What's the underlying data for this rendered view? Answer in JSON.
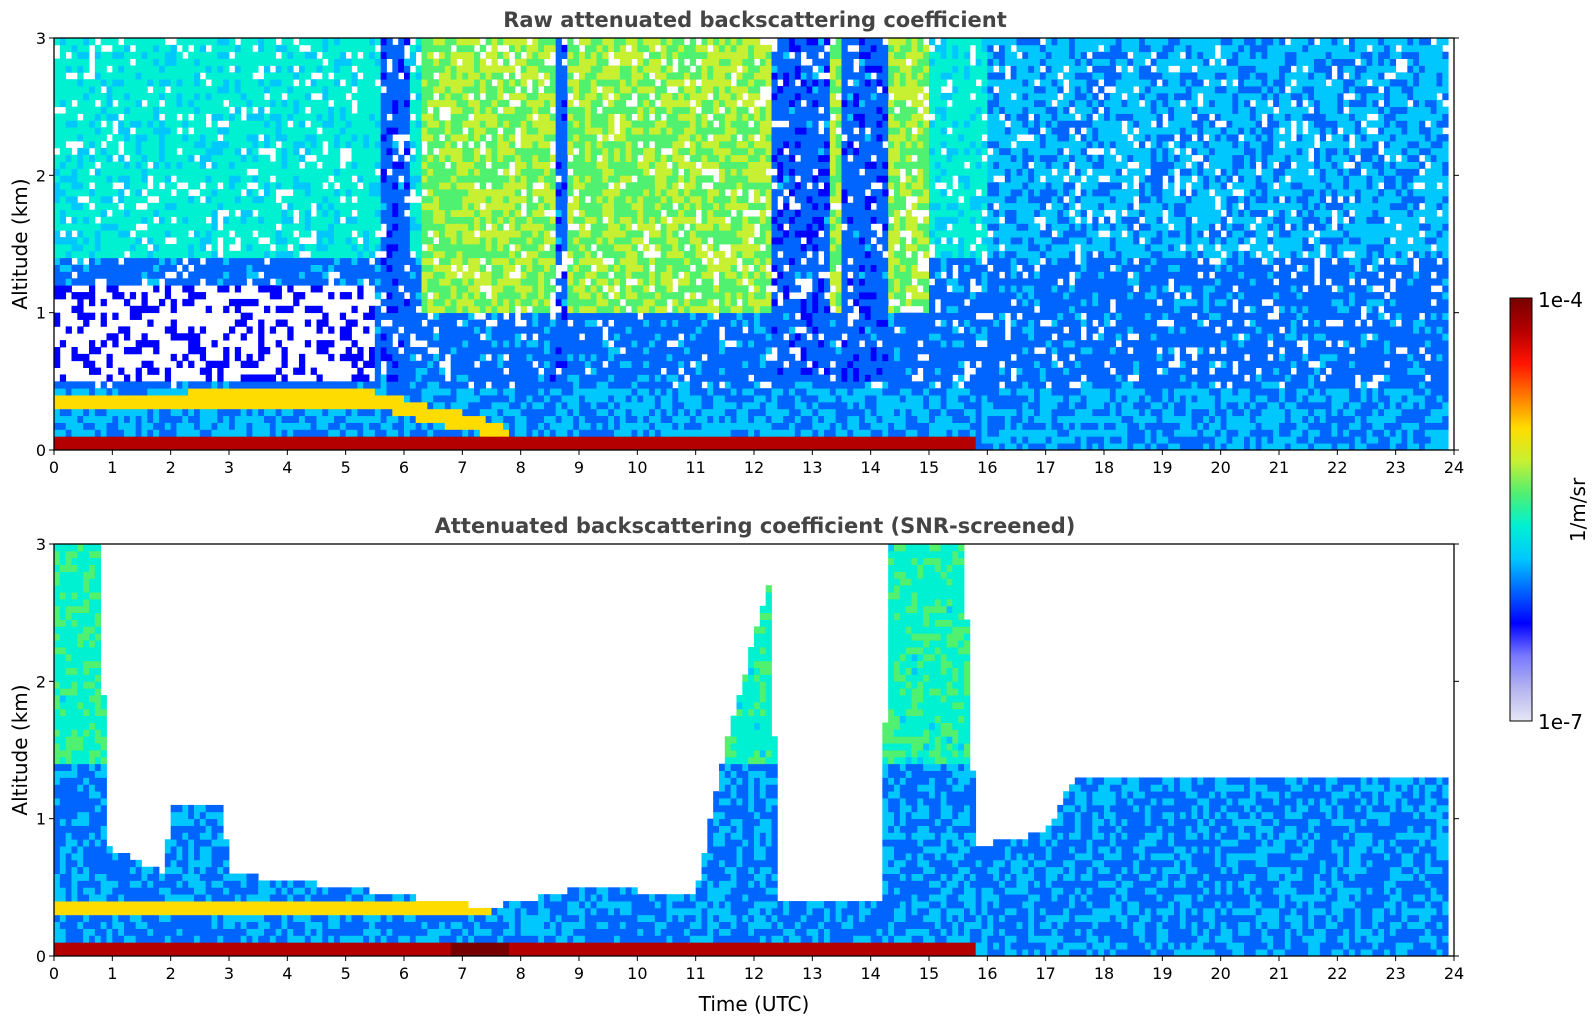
{
  "chart_data": [
    {
      "type": "heatmap",
      "title": "Raw attenuated backscattering coefficient",
      "xlabel": "",
      "ylabel": "Altitude (km)",
      "xlim": [
        0,
        24
      ],
      "ylim": [
        0,
        3
      ],
      "x_ticks": [
        "0",
        "1",
        "2",
        "3",
        "4",
        "5",
        "6",
        "7",
        "8",
        "9",
        "10",
        "11",
        "12",
        "13",
        "14",
        "15",
        "16",
        "17",
        "18",
        "19",
        "20",
        "21",
        "22",
        "23",
        "24"
      ],
      "y_ticks": [
        "0",
        "1",
        "2",
        "3"
      ],
      "grid": false,
      "features": {
        "surface_layer_top_km": 0.1,
        "surface_layer_end_utc": 15.8,
        "aerosol_layer": [
          [
            0,
            0.35
          ],
          [
            3,
            0.37
          ],
          [
            5.5,
            0.37
          ],
          [
            6.5,
            0.25
          ],
          [
            7.2,
            0.2
          ],
          [
            7.8,
            0.1
          ]
        ],
        "high_signal_bands_utc": [
          [
            6.3,
            8.6
          ],
          [
            8.8,
            12.3
          ],
          [
            13.35,
            13.5
          ],
          [
            14.3,
            15.0
          ]
        ],
        "low_signal_columns_utc": [
          [
            5.6,
            6.1
          ],
          [
            8.55,
            8.75
          ],
          [
            12.35,
            13.3
          ],
          [
            13.55,
            14.25
          ]
        ]
      }
    },
    {
      "type": "heatmap",
      "title": "Attenuated backscattering coefficient (SNR-screened)",
      "xlabel": "Time (UTC)",
      "ylabel": "Altitude (km)",
      "xlim": [
        0,
        24
      ],
      "ylim": [
        0,
        3
      ],
      "x_ticks": [
        "0",
        "1",
        "2",
        "3",
        "4",
        "5",
        "6",
        "7",
        "8",
        "9",
        "10",
        "11",
        "12",
        "13",
        "14",
        "15",
        "16",
        "17",
        "18",
        "19",
        "20",
        "21",
        "22",
        "23",
        "24"
      ],
      "y_ticks": [
        "0",
        "1",
        "2",
        "3"
      ],
      "grid": false,
      "features": {
        "valid_top_km_profile": [
          [
            0,
            3.0
          ],
          [
            0.8,
            3.0
          ],
          [
            0.9,
            0.8
          ],
          [
            1.9,
            0.6
          ],
          [
            2.0,
            1.1
          ],
          [
            2.9,
            1.1
          ],
          [
            3.0,
            0.6
          ],
          [
            5.0,
            0.5
          ],
          [
            7.5,
            0.35
          ],
          [
            9.0,
            0.5
          ],
          [
            11.0,
            0.45
          ],
          [
            11.5,
            1.5
          ],
          [
            12.3,
            2.8
          ],
          [
            12.4,
            0.4
          ],
          [
            14.2,
            0.4
          ],
          [
            14.3,
            3.0
          ],
          [
            15.6,
            3.0
          ],
          [
            15.8,
            0.8
          ],
          [
            17.0,
            0.9
          ],
          [
            17.5,
            1.3
          ],
          [
            23.9,
            1.3
          ]
        ],
        "surface_layer_end_utc": 15.8
      }
    }
  ],
  "colorbar": {
    "max_label": "1e-4",
    "min_label": "1e-7",
    "unit_label": "1/m/sr",
    "colormap": [
      "#e6e6f5",
      "#b4b4f0",
      "#7878ff",
      "#0000ff",
      "#0064ff",
      "#00c8ff",
      "#00f0d2",
      "#50f070",
      "#c8f032",
      "#ffdc00",
      "#ff7800",
      "#ff1400",
      "#b40000",
      "#780000"
    ]
  }
}
